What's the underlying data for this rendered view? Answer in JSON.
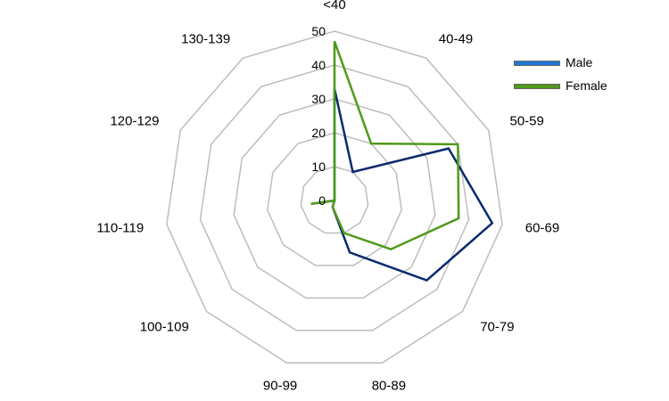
{
  "chart_data": {
    "type": "radar",
    "categories": [
      "<40",
      "40-49",
      "50-59",
      "60-69",
      "70-79",
      "80-89",
      "90-99",
      "100-109",
      "110-119",
      "120-129",
      "130-139"
    ],
    "series": [
      {
        "name": "Male",
        "color": "#0a2a6e",
        "legend_color": "#1f77d6",
        "values": [
          33,
          10,
          37,
          47,
          36,
          16,
          2,
          0,
          7,
          0,
          0
        ]
      },
      {
        "name": "Female",
        "color": "#4f9a1a",
        "legend_color": "#4f9a1a",
        "values": [
          47,
          20,
          40,
          37,
          22,
          10,
          2,
          0,
          7,
          0,
          0
        ]
      }
    ],
    "radial_ticks": [
      0,
      10,
      20,
      30,
      40,
      50
    ],
    "rlim": [
      0,
      50
    ],
    "grid": true,
    "legend": "top-right"
  }
}
